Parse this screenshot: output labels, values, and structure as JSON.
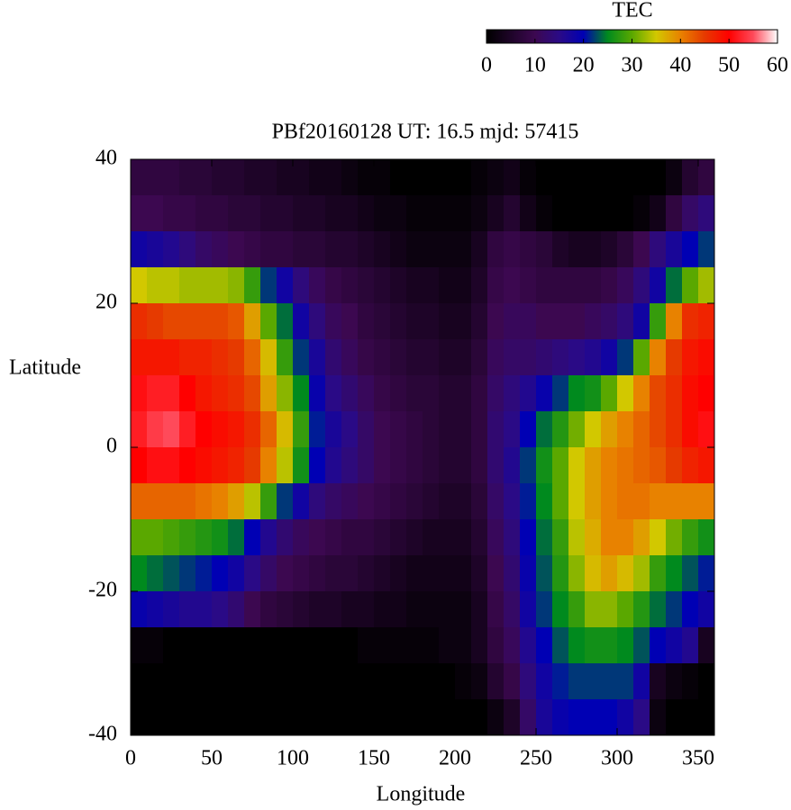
{
  "chart_data": {
    "type": "heatmap",
    "title": "PBf20160128  UT: 16.5  mjd: 57415",
    "x_label": "Longitude",
    "y_label": "Latitude",
    "colorbar_label": "TEC",
    "xlim": [
      0,
      360
    ],
    "ylim": [
      -40,
      40
    ],
    "xticks": [
      0,
      50,
      100,
      150,
      200,
      250,
      300,
      350
    ],
    "yticks": [
      40,
      20,
      0,
      -20,
      -40
    ],
    "clim": [
      0,
      60
    ],
    "cticks": [
      0,
      10,
      20,
      30,
      40,
      50,
      60
    ],
    "colormap": [
      {
        "value": 0,
        "color": "#000000"
      },
      {
        "value": 10,
        "color": "#3c0850"
      },
      {
        "value": 15,
        "color": "#2a0a86"
      },
      {
        "value": 20,
        "color": "#0000b4"
      },
      {
        "value": 25,
        "color": "#008a1e"
      },
      {
        "value": 30,
        "color": "#5aa800"
      },
      {
        "value": 35,
        "color": "#d2c800"
      },
      {
        "value": 40,
        "color": "#e88200"
      },
      {
        "value": 45,
        "color": "#e63a00"
      },
      {
        "value": 50,
        "color": "#ff0000"
      },
      {
        "value": 55,
        "color": "#ff4a5a"
      },
      {
        "value": 60,
        "color": "#ffffff"
      }
    ],
    "x": [
      5,
      15,
      25,
      35,
      45,
      55,
      65,
      75,
      85,
      95,
      105,
      115,
      125,
      135,
      145,
      155,
      165,
      175,
      185,
      195,
      205,
      215,
      225,
      235,
      245,
      255,
      265,
      275,
      285,
      295,
      305,
      315,
      325,
      335,
      345,
      355
    ],
    "y": [
      37.5,
      32.5,
      27.5,
      22.5,
      17.5,
      12.5,
      7.5,
      2.5,
      -2.5,
      -7.5,
      -12.5,
      -17.5,
      -22.5,
      -27.5,
      -32.5,
      -37.5
    ],
    "z": [
      [
        8,
        8,
        8,
        7,
        7,
        6,
        6,
        5,
        5,
        4,
        4,
        3,
        3,
        2,
        1,
        1,
        0,
        0,
        0,
        0,
        0,
        1,
        2,
        3,
        1,
        0,
        0,
        0,
        0,
        0,
        0,
        0,
        0,
        2,
        6,
        8
      ],
      [
        10,
        10,
        9,
        9,
        8,
        8,
        7,
        7,
        6,
        6,
        5,
        5,
        4,
        4,
        3,
        2,
        2,
        1,
        1,
        1,
        1,
        2,
        4,
        6,
        3,
        1,
        0,
        0,
        0,
        0,
        0,
        1,
        3,
        8,
        12,
        14
      ],
      [
        18,
        17,
        16,
        14,
        12,
        11,
        10,
        9,
        8,
        8,
        7,
        7,
        6,
        6,
        5,
        4,
        3,
        2,
        2,
        2,
        2,
        4,
        8,
        9,
        8,
        7,
        5,
        4,
        4,
        5,
        7,
        10,
        14,
        17,
        20,
        22
      ],
      [
        35,
        34,
        34,
        33,
        33,
        33,
        32,
        28,
        22,
        18,
        14,
        11,
        9,
        8,
        7,
        6,
        5,
        4,
        4,
        3,
        3,
        5,
        9,
        10,
        9,
        8,
        8,
        8,
        8,
        9,
        11,
        14,
        18,
        24,
        30,
        33
      ],
      [
        46,
        45,
        44,
        44,
        44,
        44,
        43,
        38,
        30,
        24,
        18,
        14,
        11,
        10,
        8,
        7,
        6,
        5,
        5,
        4,
        4,
        6,
        10,
        11,
        11,
        10,
        10,
        10,
        11,
        12,
        14,
        18,
        28,
        40,
        46,
        47
      ],
      [
        48,
        48,
        48,
        47,
        47,
        46,
        45,
        42,
        36,
        28,
        22,
        17,
        13,
        11,
        9,
        8,
        7,
        6,
        6,
        5,
        5,
        7,
        11,
        12,
        12,
        13,
        14,
        15,
        16,
        18,
        22,
        30,
        40,
        45,
        48,
        49
      ],
      [
        51,
        52,
        52,
        50,
        48,
        47,
        46,
        44,
        38,
        32,
        25,
        19,
        15,
        13,
        11,
        9,
        8,
        7,
        7,
        6,
        6,
        8,
        12,
        14,
        16,
        19,
        22,
        25,
        26,
        30,
        35,
        40,
        44,
        46,
        49,
        50
      ],
      [
        52,
        54,
        55,
        52,
        50,
        49,
        48,
        46,
        42,
        36,
        28,
        21,
        17,
        15,
        12,
        10,
        9,
        8,
        7,
        6,
        6,
        8,
        13,
        15,
        20,
        24,
        27,
        31,
        35,
        38,
        40,
        42,
        44,
        46,
        49,
        51
      ],
      [
        50,
        51,
        51,
        50,
        49,
        48,
        47,
        45,
        40,
        34,
        26,
        20,
        16,
        14,
        12,
        10,
        9,
        8,
        7,
        6,
        6,
        8,
        13,
        16,
        22,
        26,
        30,
        35,
        38,
        40,
        41,
        42,
        43,
        45,
        47,
        48
      ],
      [
        42,
        42,
        42,
        42,
        41,
        40,
        38,
        34,
        28,
        22,
        18,
        14,
        12,
        11,
        10,
        9,
        8,
        7,
        6,
        5,
        5,
        7,
        12,
        15,
        21,
        25,
        30,
        35,
        38,
        40,
        41,
        41,
        40,
        40,
        40,
        40
      ],
      [
        30,
        30,
        29,
        28,
        27,
        26,
        24,
        20,
        16,
        13,
        11,
        10,
        9,
        8,
        8,
        7,
        6,
        5,
        4,
        4,
        4,
        6,
        11,
        14,
        20,
        24,
        28,
        34,
        37,
        40,
        40,
        38,
        35,
        31,
        28,
        26
      ],
      [
        25,
        24,
        23,
        22,
        21,
        20,
        18,
        15,
        12,
        10,
        9,
        8,
        7,
        7,
        6,
        5,
        4,
        3,
        3,
        3,
        3,
        5,
        10,
        13,
        19,
        23,
        27,
        32,
        36,
        38,
        36,
        33,
        28,
        25,
        23,
        21
      ],
      [
        19,
        18,
        17,
        16,
        16,
        15,
        13,
        10,
        8,
        7,
        6,
        5,
        5,
        4,
        4,
        3,
        3,
        2,
        2,
        2,
        2,
        4,
        9,
        12,
        18,
        22,
        25,
        28,
        32,
        32,
        30,
        27,
        24,
        22,
        20,
        18
      ],
      [
        1,
        1,
        0,
        0,
        0,
        0,
        0,
        0,
        0,
        0,
        0,
        0,
        0,
        0,
        1,
        1,
        1,
        1,
        1,
        2,
        2,
        4,
        8,
        11,
        16,
        20,
        23,
        25,
        26,
        26,
        25,
        23,
        20,
        18,
        16,
        4
      ],
      [
        0,
        0,
        0,
        0,
        0,
        0,
        0,
        0,
        0,
        0,
        0,
        0,
        0,
        0,
        0,
        0,
        0,
        0,
        0,
        0,
        1,
        2,
        6,
        9,
        14,
        18,
        21,
        22,
        22,
        22,
        22,
        18,
        4,
        2,
        1,
        0
      ],
      [
        0,
        0,
        0,
        0,
        0,
        0,
        0,
        0,
        0,
        0,
        0,
        0,
        0,
        0,
        0,
        0,
        0,
        0,
        0,
        0,
        0,
        0,
        2,
        5,
        12,
        17,
        19,
        20,
        20,
        20,
        18,
        15,
        2,
        0,
        0,
        0
      ]
    ]
  }
}
